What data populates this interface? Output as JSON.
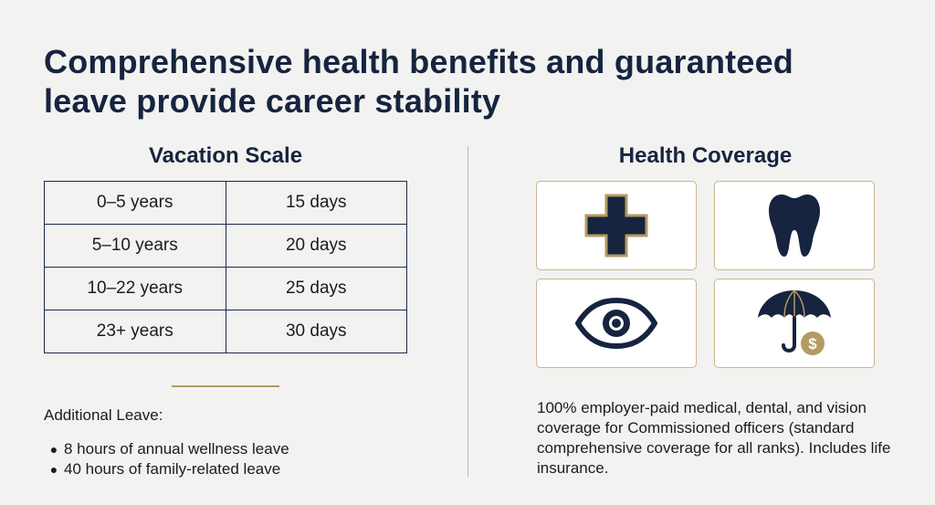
{
  "title": "Comprehensive health benefits and guaranteed leave provide career stability",
  "colors": {
    "navy": "#16243f",
    "gold": "#b59a62",
    "background": "#f2f2f0"
  },
  "vacation": {
    "heading": "Vacation Scale",
    "rows": [
      {
        "service": "0–5 years",
        "days": "15 days"
      },
      {
        "service": "5–10 years",
        "days": "20 days"
      },
      {
        "service": "10–22 years",
        "days": "25 days"
      },
      {
        "service": "23+ years",
        "days": "30 days"
      }
    ],
    "additional_label": "Additional Leave:",
    "additional_items": [
      "8 hours of annual wellness leave",
      "40 hours of family-related leave"
    ]
  },
  "health": {
    "heading": "Health Coverage",
    "icons": [
      "medical-cross-icon",
      "tooth-icon",
      "eye-icon",
      "umbrella-dollar-icon"
    ],
    "description": "100% employer-paid medical, dental, and vision coverage for Commissioned officers (standard comprehensive coverage for all ranks). Includes life insurance.",
    "dollar_symbol": "$"
  }
}
